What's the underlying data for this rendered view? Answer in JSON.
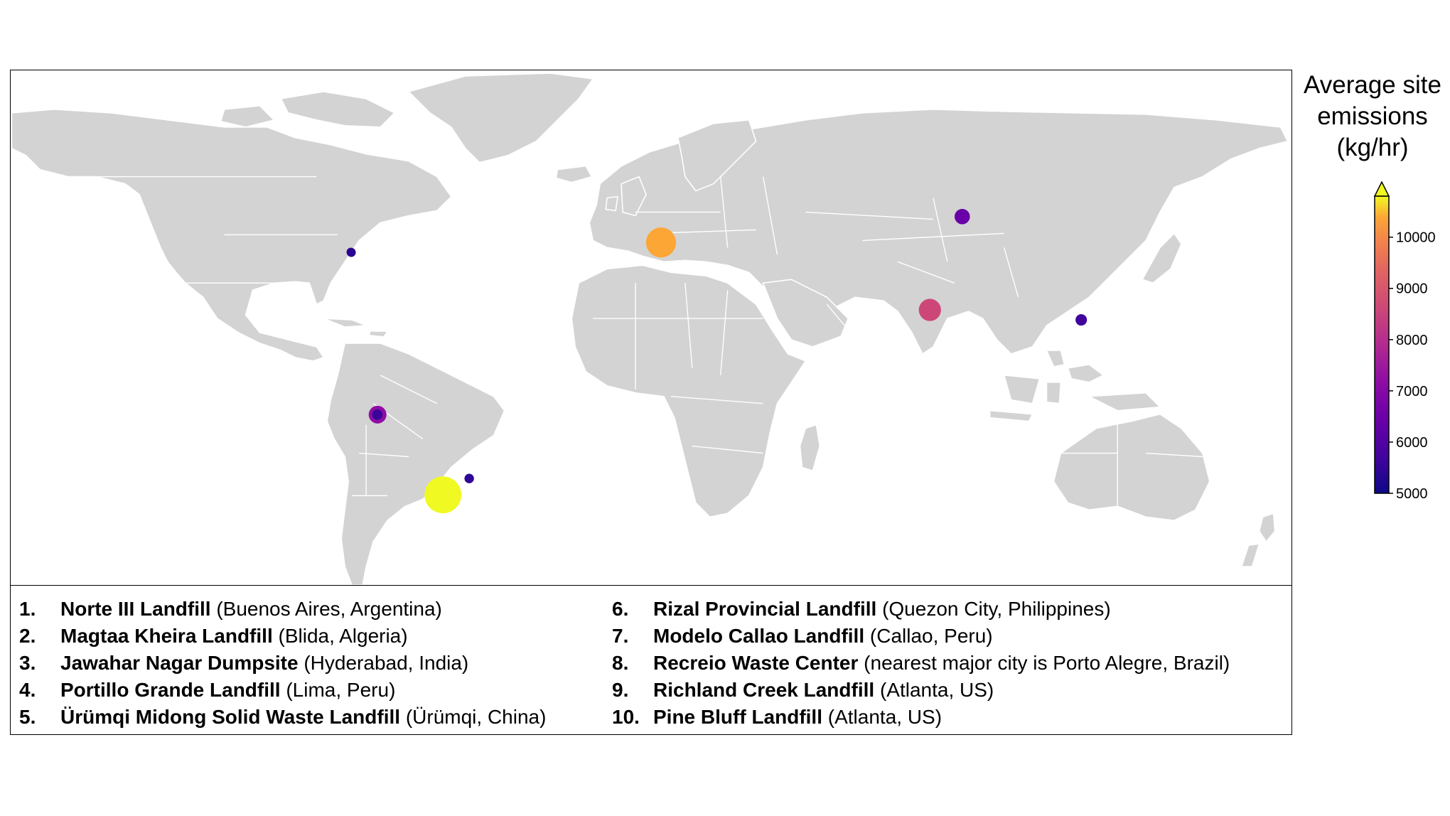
{
  "colorbar": {
    "title_lines": [
      "Average site",
      "emissions",
      "(kg/hr)"
    ],
    "min": 5000,
    "max": 10800,
    "ticks": [
      "10000",
      "9000",
      "8000",
      "7000",
      "6000",
      "5000"
    ],
    "tick_values": [
      10000,
      9000,
      8000,
      7000,
      6000,
      5000
    ],
    "extend": "max",
    "colormap": "plasma"
  },
  "map": {
    "land_color": "#d3d3d3",
    "border_color": "#ffffff",
    "sites": [
      {
        "id": 1,
        "lon": -58.6,
        "lat": -34.6,
        "emission": 10800,
        "color": "#f0f921"
      },
      {
        "id": 2,
        "lon": 2.8,
        "lat": 36.5,
        "emission": 9400,
        "color": "#fca636"
      },
      {
        "id": 3,
        "lon": 78.5,
        "lat": 17.5,
        "emission": 7800,
        "color": "#cc4778"
      },
      {
        "id": 4,
        "lon": -77.0,
        "lat": -12.0,
        "emission": 6900,
        "color": "#8f0da4"
      },
      {
        "id": 5,
        "lon": 87.6,
        "lat": 43.8,
        "emission": 6400,
        "color": "#6a00a8"
      },
      {
        "id": 6,
        "lon": 121.1,
        "lat": 14.7,
        "emission": 5600,
        "color": "#41049d"
      },
      {
        "id": 7,
        "lon": -77.1,
        "lat": -12.0,
        "emission": 5400,
        "color": "#3a049a"
      },
      {
        "id": 8,
        "lon": -51.2,
        "lat": -30.0,
        "emission": 5200,
        "color": "#2f0596"
      },
      {
        "id": 9,
        "lon": -84.4,
        "lat": 33.7,
        "emission": 5100,
        "color": "#2a0593"
      },
      {
        "id": 10,
        "lon": -84.5,
        "lat": 33.8,
        "emission": 5050,
        "color": "#2a0593"
      }
    ]
  },
  "legend": {
    "left": [
      {
        "num": "1.",
        "name": "Norte III Landfill",
        "place": " (Buenos Aires, Argentina)"
      },
      {
        "num": "2.",
        "name": "Magtaa Kheira Landfill",
        "place": " (Blida, Algeria)"
      },
      {
        "num": "3.",
        "name": "Jawahar Nagar Dumpsite",
        "place": " (Hyderabad, India)"
      },
      {
        "num": "4.",
        "name": "Portillo Grande Landfill",
        "place": " (Lima, Peru)"
      },
      {
        "num": "5.",
        "name": "Ürümqi Midong Solid Waste Landfill",
        "place": " (Ürümqi, China)"
      }
    ],
    "right": [
      {
        "num": "6.",
        "name": "Rizal Provincial Landfill",
        "place": " (Quezon City, Philippines)"
      },
      {
        "num": "7.",
        "name": "Modelo Callao Landfill",
        "place": " (Callao, Peru)"
      },
      {
        "num": "8.",
        "name": "Recreio Waste Center",
        "place": " (nearest major city is Porto Alegre, Brazil)"
      },
      {
        "num": "9.",
        "name": "Richland Creek Landfill",
        "place": " (Atlanta, US)"
      },
      {
        "num": "10.",
        "name": "Pine Bluff Landfill",
        "place": " (Atlanta, US)"
      }
    ]
  }
}
